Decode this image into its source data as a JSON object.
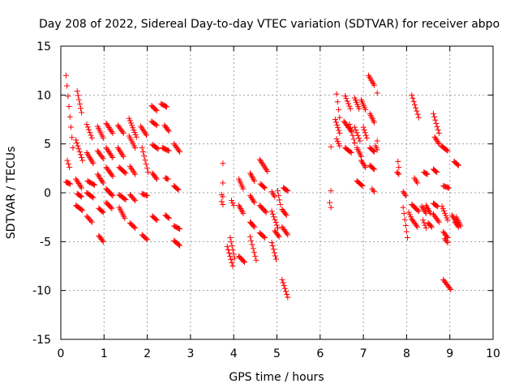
{
  "chart_data": {
    "type": "scatter",
    "title": "Day 208 of 2022, Sidereal Day-to-day VTEC variation (SDTVAR) for receiver abpo",
    "xlabel": "GPS time / hours",
    "ylabel": "SDTVAR / TECUs",
    "xlim": [
      0,
      10
    ],
    "ylim": [
      -15,
      15
    ],
    "xticks": [
      "0",
      "1",
      "2",
      "3",
      "4",
      "5",
      "6",
      "7",
      "8",
      "9",
      "10"
    ],
    "yticks": [
      "-15",
      "-10",
      "-5",
      "0",
      "5",
      "10",
      "15"
    ],
    "grid": true,
    "marker": "+",
    "color": "#ff0000",
    "series": [
      {
        "name": "SDTVAR",
        "segments": [
          [
            0.12,
            12.0,
            0.28,
            4.6
          ],
          [
            0.15,
            3.3,
            0.2,
            2.6
          ],
          [
            0.12,
            1.1,
            0.22,
            0.9
          ],
          [
            0.38,
            10.4,
            0.48,
            8.2
          ],
          [
            0.35,
            5.4,
            0.5,
            3.3
          ],
          [
            0.35,
            1.4,
            0.48,
            0.5
          ],
          [
            0.38,
            -0.1,
            0.48,
            -0.4
          ],
          [
            0.35,
            -1.3,
            0.5,
            -1.8
          ],
          [
            0.6,
            7.0,
            0.72,
            5.6
          ],
          [
            0.6,
            4.1,
            0.75,
            3.0
          ],
          [
            0.62,
            1.2,
            0.78,
            0.8
          ],
          [
            0.6,
            0.0,
            0.75,
            -0.5
          ],
          [
            0.6,
            -2.4,
            0.72,
            -3.0
          ],
          [
            0.85,
            6.8,
            0.98,
            5.6
          ],
          [
            0.85,
            4.3,
            0.98,
            3.5
          ],
          [
            0.85,
            1.9,
            0.98,
            1.0
          ],
          [
            0.88,
            -1.6,
            0.98,
            -2.0
          ],
          [
            0.88,
            -4.4,
            0.98,
            -5.0
          ],
          [
            1.05,
            7.1,
            1.2,
            6.1
          ],
          [
            1.05,
            4.6,
            1.2,
            3.6
          ],
          [
            1.05,
            2.6,
            1.2,
            1.7
          ],
          [
            1.05,
            0.4,
            1.2,
            -0.3
          ],
          [
            1.05,
            -1.0,
            1.18,
            -1.6
          ],
          [
            1.32,
            6.9,
            1.45,
            6.1
          ],
          [
            1.32,
            4.6,
            1.45,
            3.7
          ],
          [
            1.35,
            2.6,
            1.5,
            2.0
          ],
          [
            1.35,
            -0.2,
            1.5,
            -0.7
          ],
          [
            1.35,
            -1.5,
            1.48,
            -2.6
          ],
          [
            1.58,
            7.6,
            1.75,
            5.7
          ],
          [
            1.58,
            5.8,
            1.72,
            4.6
          ],
          [
            1.6,
            2.7,
            1.72,
            1.9
          ],
          [
            1.6,
            -0.2,
            1.72,
            -0.8
          ],
          [
            1.6,
            -3.1,
            1.72,
            -3.6
          ],
          [
            1.85,
            6.8,
            1.98,
            5.9
          ],
          [
            1.88,
            4.6,
            2.02,
            2.1
          ],
          [
            1.88,
            -0.1,
            2.0,
            -0.3
          ],
          [
            1.88,
            -4.3,
            2.0,
            -4.8
          ],
          [
            2.1,
            8.9,
            2.22,
            8.4
          ],
          [
            2.1,
            7.3,
            2.22,
            6.9
          ],
          [
            2.12,
            4.9,
            2.25,
            4.5
          ],
          [
            2.12,
            2.0,
            2.22,
            1.4
          ],
          [
            2.12,
            -2.4,
            2.22,
            -2.8
          ],
          [
            2.32,
            9.1,
            2.45,
            8.8
          ],
          [
            2.4,
            6.9,
            2.5,
            6.3
          ],
          [
            2.35,
            4.6,
            2.5,
            4.3
          ],
          [
            2.42,
            1.5,
            2.48,
            1.4
          ],
          [
            2.42,
            -2.3,
            2.5,
            -2.6
          ],
          [
            2.62,
            5.0,
            2.75,
            4.2
          ],
          [
            2.62,
            0.7,
            2.72,
            0.3
          ],
          [
            2.62,
            -3.4,
            2.75,
            -3.7
          ],
          [
            2.62,
            -4.9,
            2.75,
            -5.4
          ],
          [
            3.75,
            3.0,
            3.75,
            2.7
          ],
          [
            3.75,
            1.0,
            3.75,
            0.9
          ],
          [
            3.72,
            -0.2,
            3.75,
            -0.4
          ],
          [
            3.72,
            -0.9,
            3.75,
            -1.2
          ],
          [
            3.85,
            -5.5,
            3.98,
            -7.5
          ],
          [
            3.95,
            -0.8,
            4.0,
            -1.3
          ],
          [
            3.92,
            -4.6,
            4.02,
            -6.7
          ],
          [
            4.12,
            1.4,
            4.22,
            0.4
          ],
          [
            4.12,
            -1.3,
            4.22,
            -2.1
          ],
          [
            4.12,
            -6.5,
            4.25,
            -7.1
          ],
          [
            4.38,
            2.0,
            4.48,
            1.2
          ],
          [
            4.38,
            -0.3,
            4.48,
            -1.0
          ],
          [
            4.38,
            -3.0,
            4.48,
            -3.5
          ],
          [
            4.38,
            -4.5,
            4.52,
            -6.9
          ],
          [
            4.6,
            3.4,
            4.78,
            2.2
          ],
          [
            4.62,
            0.9,
            4.72,
            0.5
          ],
          [
            4.6,
            -1.3,
            4.75,
            -2.0
          ],
          [
            4.6,
            -4.1,
            4.72,
            -4.6
          ],
          [
            4.88,
            0.1,
            4.95,
            -0.4
          ],
          [
            4.88,
            -1.9,
            5.02,
            -3.6
          ],
          [
            4.88,
            -5.1,
            4.98,
            -6.8
          ],
          [
            4.95,
            -3.9,
            5.05,
            -4.5
          ],
          [
            5.02,
            0.2,
            5.08,
            -1.2
          ],
          [
            5.15,
            0.5,
            5.25,
            0.2
          ],
          [
            5.12,
            -1.7,
            5.22,
            -2.3
          ],
          [
            5.12,
            -3.5,
            5.25,
            -4.3
          ],
          [
            5.12,
            -8.9,
            5.25,
            -10.7
          ],
          [
            6.25,
            4.7,
            6.25,
            4.6
          ],
          [
            6.25,
            0.2,
            6.25,
            0.2
          ],
          [
            6.22,
            -1.0,
            6.25,
            -1.5
          ],
          [
            6.38,
            10.1,
            6.45,
            7.7
          ],
          [
            6.35,
            7.5,
            6.45,
            6.1
          ],
          [
            6.38,
            5.5,
            6.45,
            4.8
          ],
          [
            6.58,
            9.9,
            6.7,
            8.6
          ],
          [
            6.55,
            7.3,
            6.72,
            6.3
          ],
          [
            6.58,
            4.6,
            6.72,
            4.1
          ],
          [
            6.68,
            7.0,
            6.8,
            5.1
          ],
          [
            6.8,
            9.7,
            6.9,
            8.6
          ],
          [
            6.8,
            6.7,
            6.92,
            5.3
          ],
          [
            6.85,
            4.6,
            6.95,
            3.7
          ],
          [
            6.85,
            1.2,
            6.98,
            0.7
          ],
          [
            6.95,
            9.5,
            7.05,
            8.5
          ],
          [
            7.0,
            6.7,
            7.08,
            5.6
          ],
          [
            6.95,
            3.3,
            7.05,
            2.6
          ],
          [
            7.12,
            12.0,
            7.25,
            11.0
          ],
          [
            7.15,
            8.1,
            7.25,
            7.2
          ],
          [
            7.15,
            4.6,
            7.25,
            4.2
          ],
          [
            7.15,
            2.8,
            7.25,
            2.4
          ],
          [
            7.2,
            0.4,
            7.25,
            0.1
          ],
          [
            7.32,
            10.2,
            7.32,
            10.2
          ],
          [
            7.32,
            5.3,
            7.32,
            5.3
          ],
          [
            7.28,
            4.8,
            7.32,
            4.4
          ],
          [
            7.8,
            3.2,
            7.82,
            2.6
          ],
          [
            7.78,
            2.1,
            7.82,
            1.9
          ],
          [
            7.92,
            0.1,
            7.98,
            -0.3
          ],
          [
            7.92,
            -1.5,
            8.02,
            -4.6
          ],
          [
            8.05,
            -2.0,
            8.12,
            -2.7
          ],
          [
            8.12,
            10.0,
            8.28,
            7.7
          ],
          [
            8.18,
            1.5,
            8.25,
            1.0
          ],
          [
            8.12,
            -1.2,
            8.28,
            -1.9
          ],
          [
            8.12,
            -2.7,
            8.25,
            -3.5
          ],
          [
            8.35,
            -1.4,
            8.45,
            -2.1
          ],
          [
            8.38,
            -2.8,
            8.45,
            -3.6
          ],
          [
            8.4,
            2.1,
            8.48,
            1.9
          ],
          [
            8.45,
            -1.3,
            8.55,
            -2.1
          ],
          [
            8.5,
            -3.1,
            8.58,
            -3.5
          ],
          [
            8.62,
            8.1,
            8.75,
            6.1
          ],
          [
            8.65,
            5.7,
            8.75,
            5.0
          ],
          [
            8.62,
            2.4,
            8.7,
            2.1
          ],
          [
            8.62,
            -1.1,
            8.72,
            -1.4
          ],
          [
            8.62,
            -2.2,
            8.75,
            -3.0
          ],
          [
            8.8,
            4.8,
            8.95,
            4.3
          ],
          [
            8.85,
            0.7,
            8.98,
            0.5
          ],
          [
            8.82,
            -1.4,
            8.95,
            -2.8
          ],
          [
            8.85,
            -4.0,
            8.95,
            -4.6
          ],
          [
            8.88,
            -4.7,
            8.95,
            -5.1
          ],
          [
            8.85,
            -8.9,
            9.02,
            -9.9
          ],
          [
            9.1,
            3.2,
            9.2,
            2.8
          ],
          [
            9.05,
            -2.3,
            9.18,
            -3.2
          ],
          [
            9.12,
            -3.0,
            9.2,
            -3.5
          ],
          [
            9.15,
            -2.5,
            9.25,
            -3.4
          ]
        ]
      }
    ]
  }
}
